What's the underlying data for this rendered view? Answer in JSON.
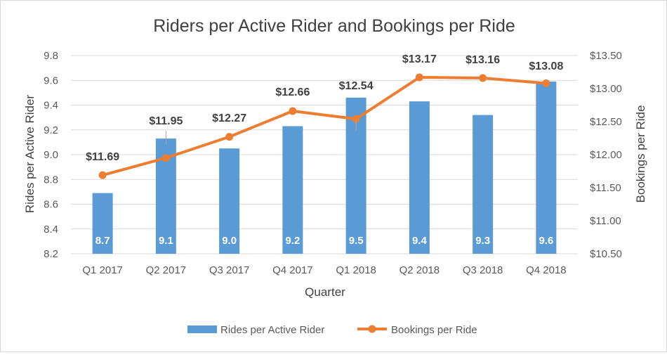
{
  "chart_data": {
    "type": "bar",
    "title": "Riders per Active Rider and Bookings per Ride",
    "xlabel": "Quarter",
    "ylabel": "Rides per Active Rider",
    "y2label": "Bookings per Ride",
    "categories": [
      "Q1 2017",
      "Q2 2017",
      "Q3 2017",
      "Q4 2017",
      "Q1 2018",
      "Q2 2018",
      "Q3 2018",
      "Q4 2018"
    ],
    "series": [
      {
        "name": "Rides per Active Rider",
        "type": "bar",
        "axis": "left",
        "color": "#5b9bd5",
        "values": [
          8.69,
          9.13,
          9.05,
          9.23,
          9.46,
          9.43,
          9.32,
          9.59
        ],
        "labels": [
          "8.7",
          "9.1",
          "9.0",
          "9.2",
          "9.5",
          "9.4",
          "9.3",
          "9.6"
        ]
      },
      {
        "name": "Bookings per Ride",
        "type": "line",
        "axis": "right",
        "color": "#ed7d31",
        "values": [
          11.69,
          11.95,
          12.27,
          12.66,
          12.54,
          13.17,
          13.16,
          13.08
        ],
        "labels": [
          "$11.69",
          "$11.95",
          "$12.27",
          "$12.66",
          "$12.54",
          "$13.17",
          "$13.16",
          "$13.08"
        ]
      }
    ],
    "ylim": [
      8.2,
      9.8
    ],
    "yticks": [
      "8.2",
      "8.4",
      "8.6",
      "8.8",
      "9.0",
      "9.2",
      "9.4",
      "9.6",
      "9.8"
    ],
    "y2lim": [
      10.5,
      13.5
    ],
    "y2ticks": [
      "$10.50",
      "$11.00",
      "$11.50",
      "$12.00",
      "$12.50",
      "$13.00",
      "$13.50"
    ],
    "grid": true,
    "legend": "bottom",
    "colors": {
      "gridline": "#d9d9d9",
      "text": "#595959"
    }
  }
}
